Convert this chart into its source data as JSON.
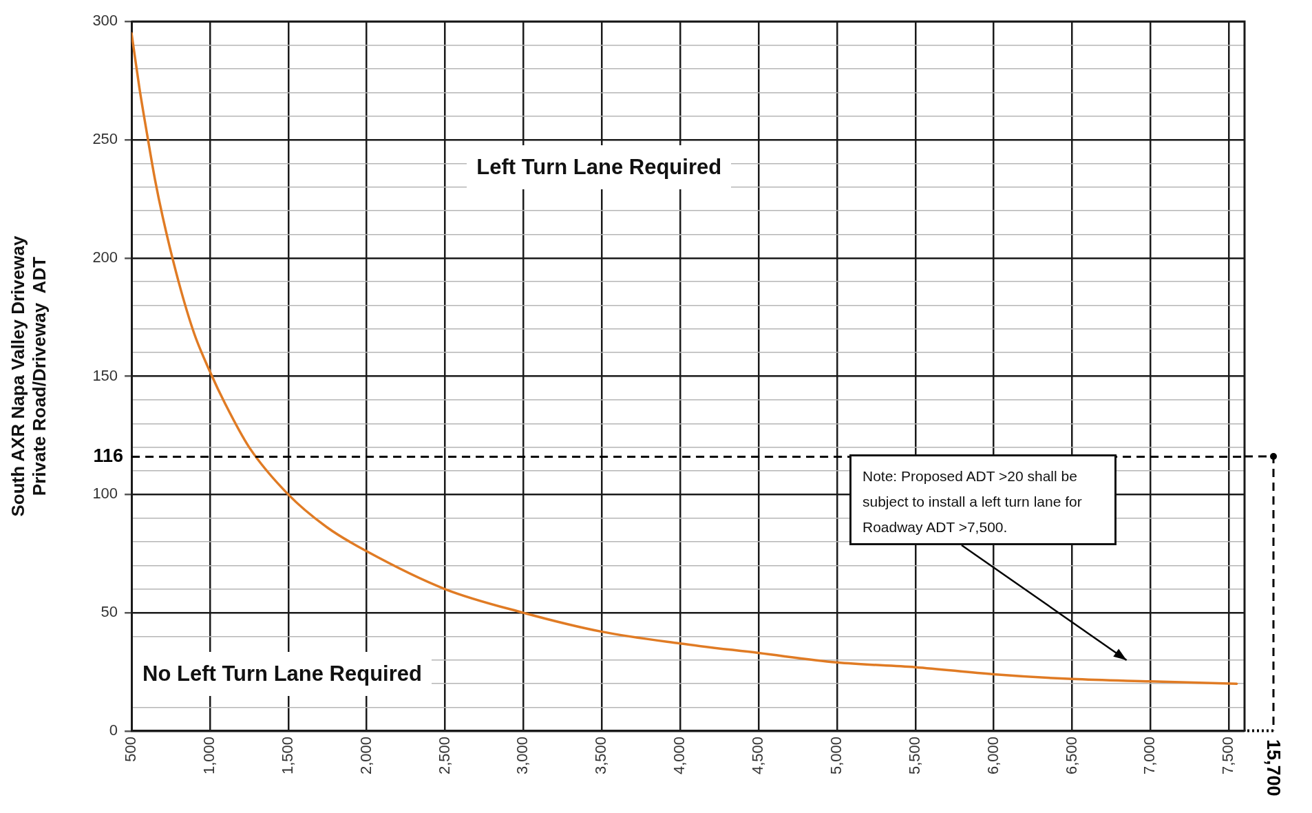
{
  "chart_data": {
    "type": "line",
    "ylabel": "South AXR Napa Valley Driveway\nPrivate Road/Driveway  ADT",
    "x": [
      500,
      550,
      600,
      650,
      700,
      800,
      900,
      1000,
      1100,
      1250,
      1500,
      1750,
      2000,
      2500,
      3000,
      3500,
      4000,
      4500,
      5000,
      5500,
      6000,
      6500,
      7000,
      7550
    ],
    "series": [
      {
        "color": "#e07b24",
        "values": [
          295,
          272,
          252,
          233,
          217,
          190,
          168,
          152,
          138,
          120,
          100,
          86,
          76,
          60,
          50,
          42,
          37,
          33,
          29,
          27,
          24,
          22,
          21,
          20
        ]
      }
    ],
    "xlim": [
      500,
      7600
    ],
    "xticks": [
      500,
      {
        "value": 1000,
        "label": "1,000"
      },
      {
        "value": 1500,
        "label": "1,500"
      },
      {
        "value": 2000,
        "label": "2,000"
      },
      {
        "value": 2500,
        "label": "2,500"
      },
      {
        "value": 3000,
        "label": "3,000"
      },
      {
        "value": 3500,
        "label": "3,500"
      },
      {
        "value": 4000,
        "label": "4,000"
      },
      {
        "value": 4500,
        "label": "4,500"
      },
      {
        "value": 5000,
        "label": "5,000"
      },
      {
        "value": 5500,
        "label": "5,500"
      },
      {
        "value": 6000,
        "label": "6,000"
      },
      {
        "value": 6500,
        "label": "6,500"
      },
      {
        "value": 7000,
        "label": "7,000"
      },
      {
        "value": 7500,
        "label": "7,500"
      }
    ],
    "ylim": [
      0,
      300
    ],
    "yticks": [
      0,
      {
        "value": 10,
        "label": null
      },
      {
        "value": 20,
        "label": null
      },
      {
        "value": 30,
        "label": null
      },
      {
        "value": 40,
        "label": null
      },
      50,
      {
        "value": 60,
        "label": null
      },
      {
        "value": 70,
        "label": null
      },
      {
        "value": 80,
        "label": null
      },
      {
        "value": 90,
        "label": null
      },
      100,
      {
        "value": 110,
        "label": null
      },
      {
        "value": 120,
        "label": null
      },
      {
        "value": 130,
        "label": null
      },
      {
        "value": 140,
        "label": null
      },
      150,
      {
        "value": 160,
        "label": null
      },
      {
        "value": 170,
        "label": null
      },
      {
        "value": 180,
        "label": null
      },
      {
        "value": 190,
        "label": null
      },
      200,
      {
        "value": 210,
        "label": null
      },
      {
        "value": 220,
        "label": null
      },
      {
        "value": 230,
        "label": null
      },
      {
        "value": 240,
        "label": null
      },
      250,
      {
        "value": 260,
        "label": null
      },
      {
        "value": 270,
        "label": null
      },
      {
        "value": 280,
        "label": null
      },
      {
        "value": 290,
        "label": null
      },
      300
    ],
    "grid": true,
    "marker": "none",
    "line_style": "solid",
    "legend": false,
    "ref_lines": [
      {
        "axis": "y",
        "value": 116,
        "label": "116",
        "color": "#000000",
        "line_style": "dashed"
      }
    ],
    "annotations": [
      "Left Turn Lane Required",
      "No Left Turn Lane Required",
      "15,700",
      "Note: Proposed ADT >20 shall be subject to install a left turn lane for Roadway ADT >7,500."
    ]
  }
}
